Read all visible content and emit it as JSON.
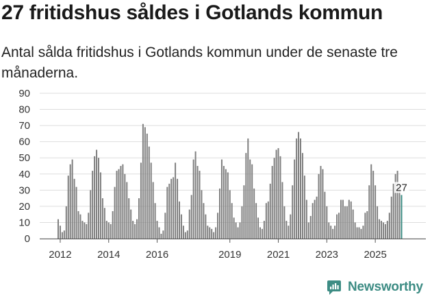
{
  "header": {
    "title": "27 fritidshus såldes i Gotlands kommun",
    "subtitle": "Antal sålda fritidshus i Gotlands kommun under de senaste tre månaderna."
  },
  "brand": {
    "name": "Newsworthy",
    "color": "#3d8c84",
    "icon": "newsworthy-logo-icon"
  },
  "colors": {
    "bar": "#7f7f7f",
    "highlight": "#3d8c84",
    "grid": "#dddddd"
  },
  "chart_data": {
    "type": "bar",
    "ylim": [
      0,
      90
    ],
    "yticks": [
      0,
      10,
      20,
      30,
      40,
      50,
      60,
      70,
      80,
      90
    ],
    "x_start": "2011-12",
    "xtick_labels": [
      "2012",
      "2014",
      "2016",
      "2019",
      "2021",
      "2023",
      "2025"
    ],
    "xtick_months": [
      "2012-01",
      "2014-01",
      "2016-01",
      "2019-01",
      "2021-01",
      "2023-01",
      "2025-01"
    ],
    "last_label": "27",
    "values": [
      12,
      8,
      4,
      5,
      20,
      39,
      46,
      49,
      37,
      32,
      17,
      15,
      11,
      10,
      9,
      16,
      30,
      42,
      51,
      55,
      50,
      41,
      25,
      19,
      11,
      10,
      9,
      17,
      32,
      42,
      43,
      45,
      46,
      40,
      35,
      25,
      18,
      11,
      9,
      12,
      25,
      47,
      71,
      69,
      65,
      57,
      47,
      35,
      22,
      11,
      7,
      3,
      5,
      16,
      32,
      34,
      37,
      38,
      47,
      37,
      23,
      15,
      8,
      4,
      5,
      18,
      27,
      49,
      54,
      45,
      42,
      30,
      22,
      15,
      8,
      7,
      6,
      4,
      7,
      16,
      31,
      49,
      45,
      43,
      41,
      30,
      22,
      13,
      10,
      7,
      10,
      20,
      33,
      53,
      62,
      49,
      46,
      31,
      22,
      13,
      7,
      6,
      11,
      22,
      23,
      34,
      45,
      50,
      55,
      56,
      51,
      35,
      20,
      11,
      8,
      15,
      33,
      49,
      62,
      66,
      62,
      53,
      39,
      24,
      10,
      14,
      22,
      24,
      26,
      40,
      45,
      43,
      29,
      20,
      10,
      8,
      6,
      8,
      15,
      16,
      24,
      24,
      20,
      20,
      24,
      23,
      18,
      10,
      7,
      7,
      6,
      8,
      16,
      17,
      33,
      46,
      42,
      33,
      20,
      12,
      11,
      10,
      9,
      11,
      16,
      26,
      34,
      40,
      42,
      33,
      27
    ]
  }
}
